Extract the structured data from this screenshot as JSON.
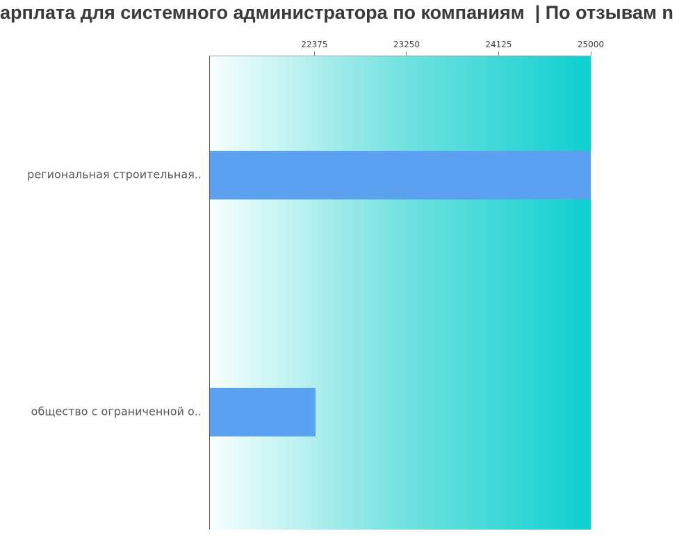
{
  "chart_data": {
    "type": "bar",
    "orientation": "horizontal",
    "title": "арплата для системного администратора по компаниям  | По отзывам n",
    "categories": [
      "региональная строительная..",
      "общество с ограниченной о.."
    ],
    "values": [
      25000,
      22380
    ],
    "xlim": [
      21375,
      25000
    ],
    "xticks": [
      22375,
      23250,
      24125,
      25000
    ],
    "xticks_position": "top",
    "xlabel": "",
    "ylabel": "",
    "grid": false,
    "legend": false,
    "colors": {
      "bar": "#5ba1ef",
      "plot_bg_gradient_start": "#f9ffff",
      "plot_bg_gradient_mid": "#73e2e0",
      "plot_bg_gradient_end": "#0ecfd0",
      "axis_line": "#5c5c5c",
      "plot_top_border": "#9e9e9e",
      "tick": "#808080",
      "tick_label_text": "#3f3f3f",
      "category_label_text": "#5a5a5a",
      "title_text": "#3a3a3a"
    }
  }
}
